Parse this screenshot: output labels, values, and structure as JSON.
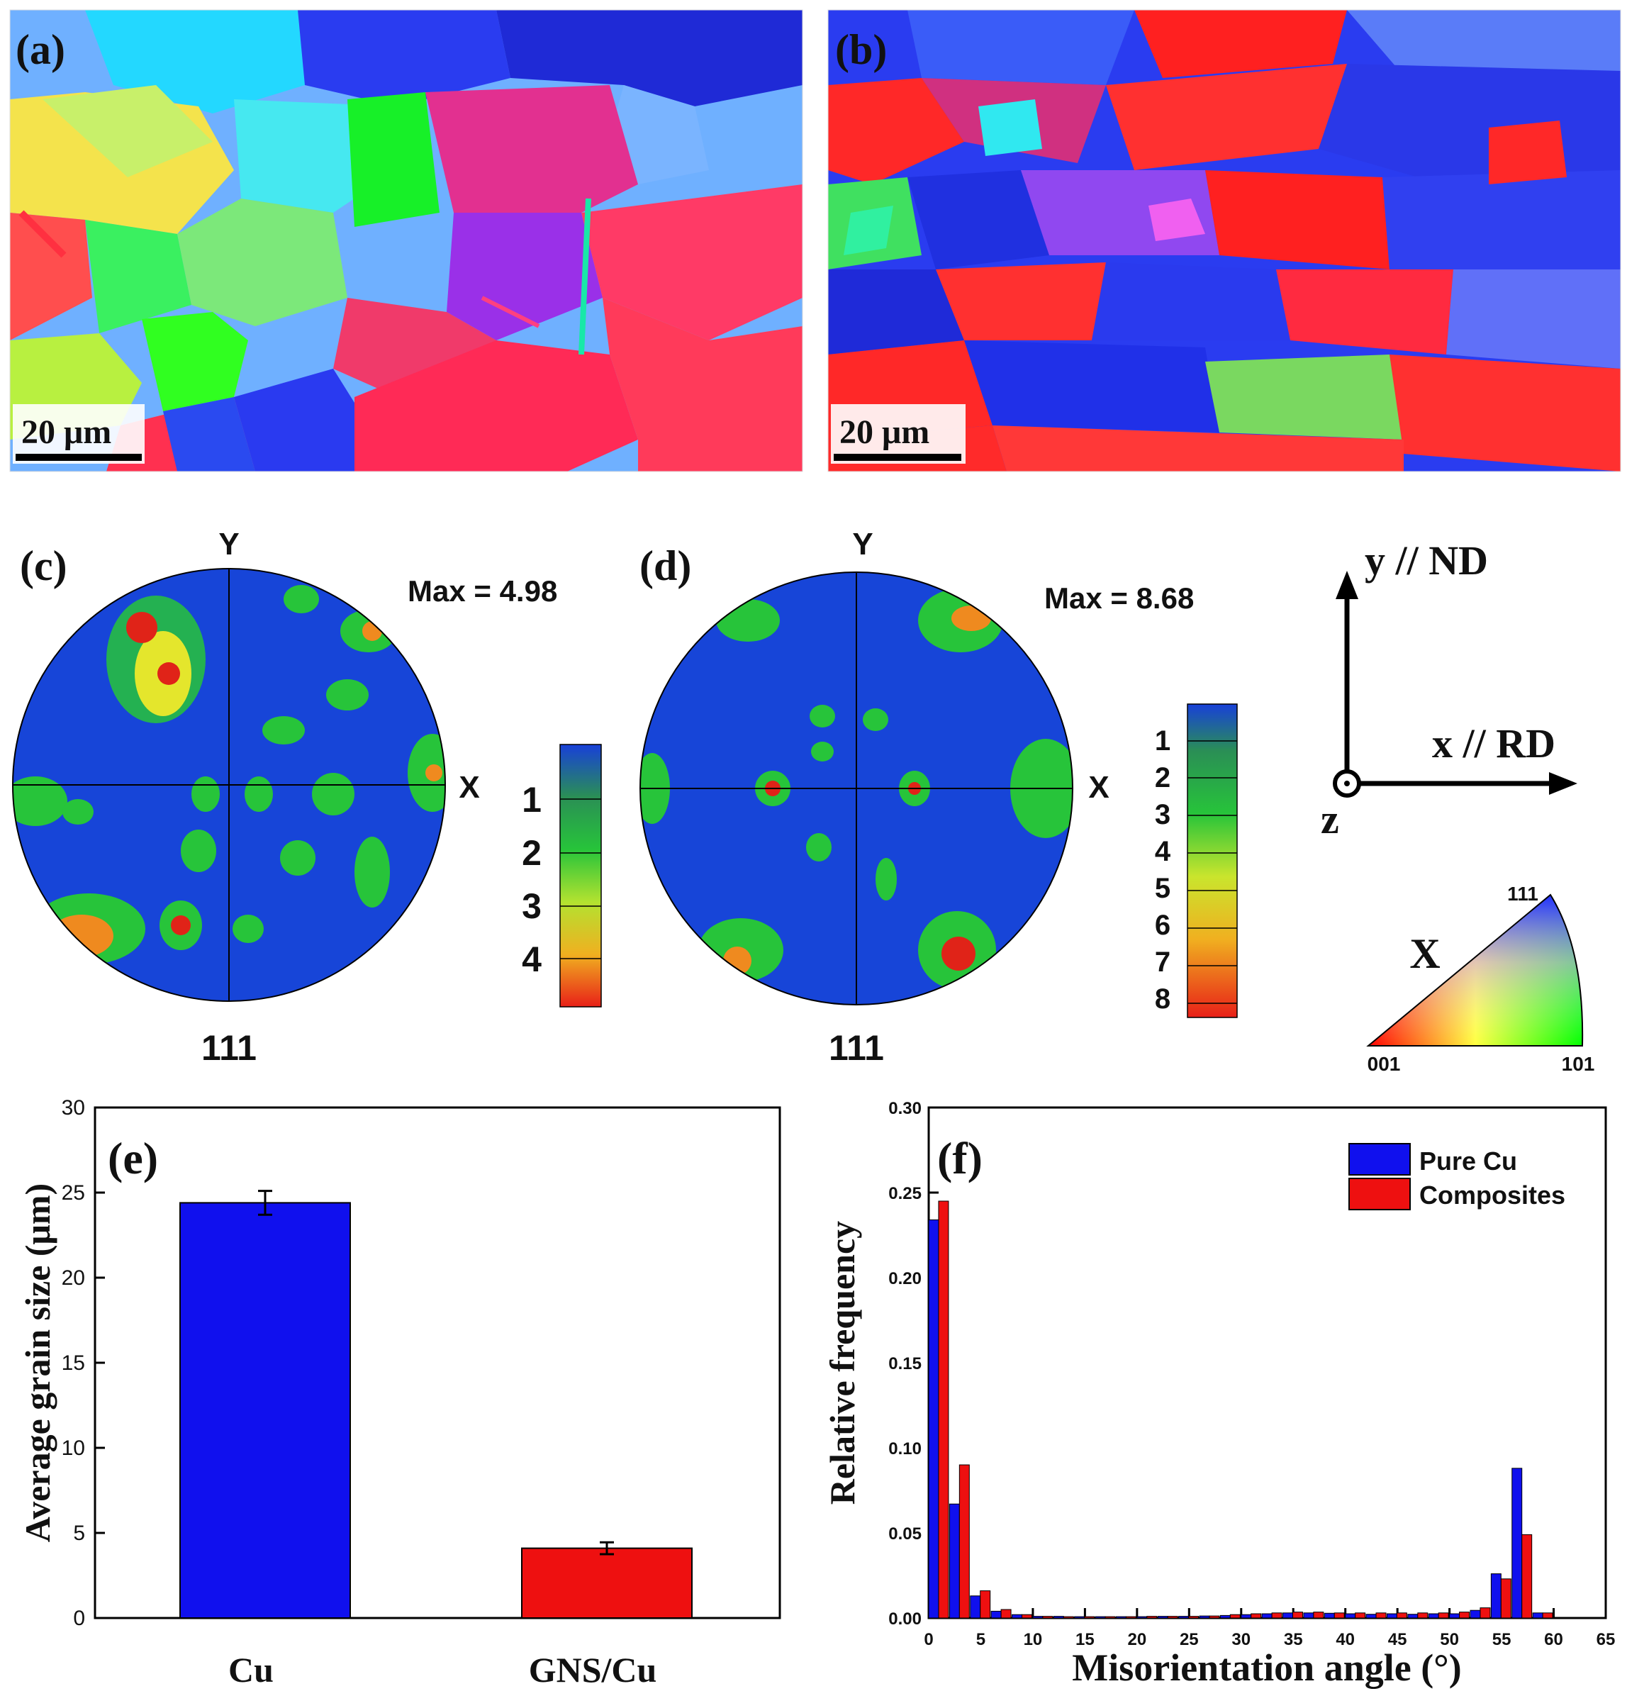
{
  "panel_labels": {
    "a": "(a)",
    "b": "(b)",
    "c": "(c)",
    "d": "(d)",
    "e": "(e)",
    "f": "(f)"
  },
  "ebsd": {
    "scale_bar_a": "20 μm",
    "scale_bar_b": "20 μm"
  },
  "pole_figures": {
    "c": {
      "max_label": "Max = 4.98",
      "axis_y": "Y",
      "axis_x": "X",
      "plane": "111",
      "legend_ticks": [
        "1",
        "2",
        "3",
        "4"
      ],
      "colors": [
        "#1747d6",
        "#2f8a3a",
        "#27c43a",
        "#e4e62c",
        "#ef8a1f",
        "#e02318"
      ]
    },
    "d": {
      "max_label": "Max = 8.68",
      "axis_y": "Y",
      "axis_x": "X",
      "plane": "111",
      "legend_ticks": [
        "1",
        "2",
        "3",
        "4",
        "5",
        "6",
        "7",
        "8"
      ]
    }
  },
  "axes_triad": {
    "y_label": "y // ND",
    "x_label": "x // RD",
    "z_label": "z"
  },
  "ipf_key": {
    "direction": "X",
    "corner_001": "001",
    "corner_101": "101",
    "corner_111": "111"
  },
  "chart_data": [
    {
      "type": "bar",
      "panel": "(e)",
      "categories": [
        "Cu",
        "GNS/Cu"
      ],
      "values": [
        24.4,
        4.1
      ],
      "errors": [
        0.7,
        0.35
      ],
      "colors": [
        "#1010ee",
        "#ee1010"
      ],
      "ylabel": "Average grain size (μm)",
      "xlabel": "",
      "ylim": [
        0,
        30
      ],
      "yticks": [
        "0",
        "5",
        "10",
        "15",
        "20",
        "25",
        "30"
      ]
    },
    {
      "type": "bar",
      "panel": "(f)",
      "xlabel": "Misorientation angle (°)",
      "ylabel": "Relative frequency",
      "xlim": [
        0,
        65
      ],
      "ylim": [
        0,
        0.3
      ],
      "xticks": [
        "0",
        "5",
        "10",
        "15",
        "20",
        "25",
        "30",
        "35",
        "40",
        "45",
        "50",
        "55",
        "60",
        "65"
      ],
      "yticks": [
        "0.00",
        "0.05",
        "0.10",
        "0.15",
        "0.20",
        "0.25",
        "0.30"
      ],
      "bin_centers": [
        1,
        3,
        5,
        7,
        9,
        11,
        13,
        15,
        17,
        19,
        21,
        23,
        25,
        27,
        29,
        31,
        33,
        35,
        37,
        39,
        41,
        43,
        45,
        47,
        49,
        51,
        53,
        55,
        57,
        59,
        61
      ],
      "legend_position": "top-right",
      "series": [
        {
          "name": "Pure Cu",
          "color": "#1010ee",
          "values": [
            0.234,
            0.067,
            0.013,
            0.004,
            0.002,
            0.001,
            0.001,
            0.0008,
            0.0008,
            0.0008,
            0.0008,
            0.001,
            0.001,
            0.0012,
            0.0015,
            0.002,
            0.0025,
            0.003,
            0.003,
            0.0028,
            0.0025,
            0.0022,
            0.0025,
            0.0022,
            0.0025,
            0.0025,
            0.0045,
            0.026,
            0.088,
            0.003,
            0.0
          ]
        },
        {
          "name": "Composites",
          "color": "#ee1010",
          "values": [
            0.245,
            0.09,
            0.016,
            0.005,
            0.002,
            0.001,
            0.0008,
            0.0008,
            0.0008,
            0.0008,
            0.001,
            0.001,
            0.001,
            0.0012,
            0.002,
            0.0025,
            0.003,
            0.0035,
            0.0035,
            0.003,
            0.003,
            0.003,
            0.003,
            0.003,
            0.003,
            0.0035,
            0.006,
            0.023,
            0.049,
            0.003,
            0.0
          ]
        }
      ]
    }
  ]
}
